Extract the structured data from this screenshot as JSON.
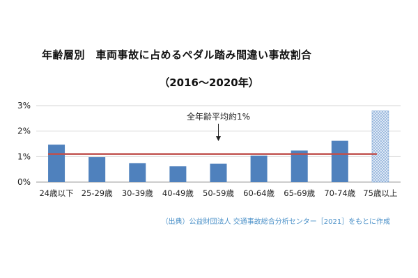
{
  "title": "年齢層別　車両事故に占めるペダル踏み間違い事故割合",
  "subtitle": "（2016～2020年）",
  "annotation": "全年齢平均約1%",
  "source": "（出典）公益財団法人 交通事故総合分析センター［2021］をもとに作成",
  "colors": {
    "bar": "#4f81bd",
    "highlight_bar_pattern": "#c7d9ee",
    "average_line": "#c0504d"
  },
  "chart_data": {
    "type": "bar",
    "title": "年齢層別　車両事故に占めるペダル踏み間違い事故割合",
    "subtitle": "（2016～2020年）",
    "categories": [
      "24歳以下",
      "25-29歳",
      "30-39歳",
      "40-49歳",
      "50-59歳",
      "60-64歳",
      "65-69歳",
      "70-74歳",
      "75歳以上"
    ],
    "values": [
      1.47,
      0.98,
      0.74,
      0.62,
      0.72,
      1.04,
      1.24,
      1.62,
      2.8
    ],
    "highlight_index": 8,
    "average_line": 1.1,
    "ylim": [
      0,
      3
    ],
    "yticks": [
      0,
      1,
      2,
      3
    ],
    "ytick_labels": [
      "0%",
      "1%",
      "2%",
      "3%"
    ],
    "grid": true,
    "xlabel": "",
    "ylabel": ""
  }
}
